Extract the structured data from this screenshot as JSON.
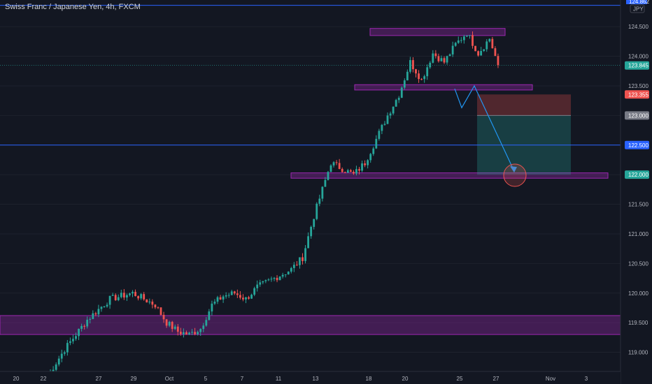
{
  "header": {
    "title": "Swiss Franc / Japanese Yen, 4h, FXCM"
  },
  "axis": {
    "currency_badge": "JPY",
    "top_partial_label": "124.862"
  },
  "colors": {
    "background": "#131722",
    "up": "#26a69a",
    "down": "#ef5350",
    "zone": "#9c27b0",
    "line": "#2962ff",
    "arrow": "#2196f3"
  },
  "chart_data": {
    "type": "candlestick",
    "title": "Swiss Franc / Japanese Yen, 4h, FXCM",
    "ylim": [
      118.7,
      124.95
    ],
    "y_ticks": [
      {
        "value": 124.5,
        "label": "124.500"
      },
      {
        "value": 124.0,
        "label": "124.000"
      },
      {
        "value": 123.5,
        "label": "123.500"
      },
      {
        "value": 123.0,
        "label": "123.000"
      },
      {
        "value": 122.5,
        "label": "122.500"
      },
      {
        "value": 122.0,
        "label": "122.000"
      },
      {
        "value": 121.5,
        "label": "121.500"
      },
      {
        "value": 121.0,
        "label": "121.000"
      },
      {
        "value": 120.5,
        "label": "120.500"
      },
      {
        "value": 120.0,
        "label": "120.000"
      },
      {
        "value": 119.5,
        "label": "119.500"
      },
      {
        "value": 119.0,
        "label": "119.000"
      }
    ],
    "x_ticks": [
      "20",
      "22",
      "27",
      "29",
      "Oct",
      "5",
      "7",
      "11",
      "13",
      "18",
      "20",
      "25",
      "27",
      "Nov",
      "3"
    ],
    "price_tags": [
      {
        "value": 123.845,
        "label": "123.845",
        "kind": "last_price"
      },
      {
        "value": 123.355,
        "label": "123.355",
        "kind": "stop_loss"
      },
      {
        "value": 123.0,
        "label": "123.000",
        "kind": "entry"
      },
      {
        "value": 122.5,
        "label": "122.500",
        "kind": "horizontal_line"
      },
      {
        "value": 122.0,
        "label": "122.000",
        "kind": "target"
      }
    ],
    "horizontal_lines": [
      124.86,
      122.5
    ],
    "zones": [
      {
        "low": 124.35,
        "high": 124.47
      },
      {
        "low": 123.43,
        "high": 123.52
      },
      {
        "low": 121.94,
        "high": 122.03
      },
      {
        "low": 119.3,
        "high": 119.62
      }
    ],
    "position": {
      "entry": 123.0,
      "stop": 123.355,
      "target": 122.0
    },
    "projection": [
      123.45,
      123.13,
      123.5,
      122.06
    ],
    "candle_anchors": [
      {
        "bar": 0,
        "price": 118.6
      },
      {
        "bar": 6,
        "price": 119.05
      },
      {
        "bar": 14,
        "price": 119.55
      },
      {
        "bar": 22,
        "price": 119.9
      },
      {
        "bar": 30,
        "price": 120.0
      },
      {
        "bar": 38,
        "price": 119.8
      },
      {
        "bar": 42,
        "price": 119.5
      },
      {
        "bar": 46,
        "price": 119.35
      },
      {
        "bar": 50,
        "price": 119.3
      },
      {
        "bar": 54,
        "price": 119.4
      },
      {
        "bar": 58,
        "price": 119.8
      },
      {
        "bar": 62,
        "price": 119.95
      },
      {
        "bar": 66,
        "price": 120.0
      },
      {
        "bar": 70,
        "price": 119.9
      },
      {
        "bar": 74,
        "price": 120.1
      },
      {
        "bar": 80,
        "price": 120.25
      },
      {
        "bar": 86,
        "price": 120.4
      },
      {
        "bar": 90,
        "price": 120.6
      },
      {
        "bar": 94,
        "price": 121.3
      },
      {
        "bar": 98,
        "price": 121.9
      },
      {
        "bar": 100,
        "price": 122.2
      },
      {
        "bar": 104,
        "price": 122.1
      },
      {
        "bar": 108,
        "price": 122.0
      },
      {
        "bar": 112,
        "price": 122.2
      },
      {
        "bar": 116,
        "price": 122.6
      },
      {
        "bar": 120,
        "price": 123.0
      },
      {
        "bar": 124,
        "price": 123.35
      },
      {
        "bar": 128,
        "price": 123.9
      },
      {
        "bar": 132,
        "price": 123.6
      },
      {
        "bar": 136,
        "price": 124.05
      },
      {
        "bar": 140,
        "price": 123.9
      },
      {
        "bar": 144,
        "price": 124.2
      },
      {
        "bar": 148,
        "price": 124.4
      },
      {
        "bar": 152,
        "price": 124.05
      },
      {
        "bar": 156,
        "price": 124.3
      },
      {
        "bar": 159,
        "price": 123.85
      }
    ]
  }
}
